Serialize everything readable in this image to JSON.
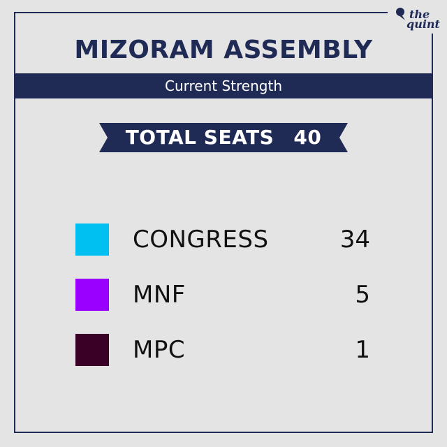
{
  "brand": {
    "line1": "the",
    "line2": "quint"
  },
  "title": "MIZORAM ASSEMBLY",
  "subtitle": "Current Strength",
  "total": {
    "label": "TOTAL SEATS",
    "value": "40"
  },
  "colors": {
    "navy": "#1f2a55",
    "background": "#e4e4e4"
  },
  "chart_data": {
    "type": "table",
    "title": "MIZORAM ASSEMBLY",
    "subtitle": "Current Strength",
    "total_seats": 40,
    "categories": [
      "CONGRESS",
      "MNF",
      "MPC"
    ],
    "values": [
      34,
      5,
      1
    ],
    "colors": [
      "#00c0f2",
      "#9a00ff",
      "#3a0026"
    ]
  }
}
